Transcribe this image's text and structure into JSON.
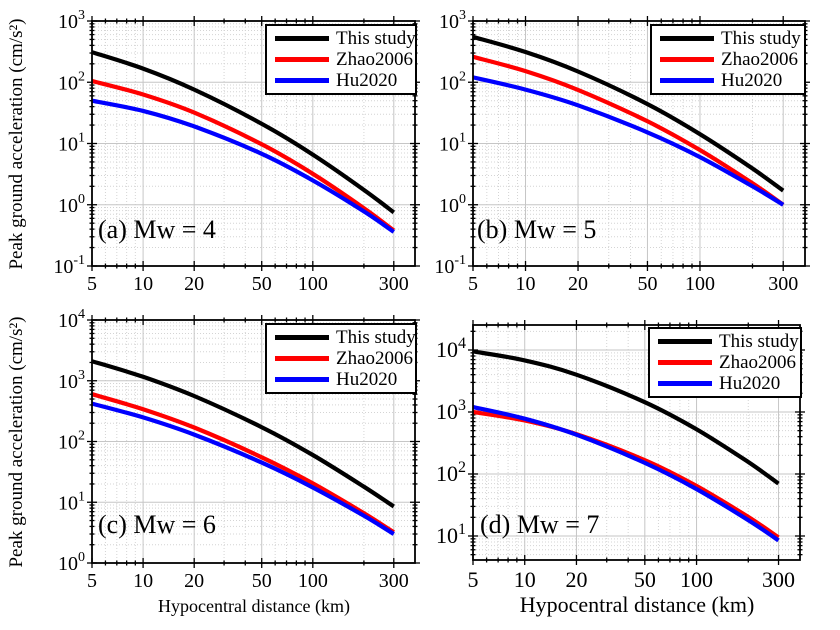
{
  "figure": {
    "ylabel": "Peak ground acceleration (cm/s²)",
    "xlabel": "Hypocentral distance (km)",
    "background": "#ffffff",
    "axis_color": "#000000",
    "grid_major_color": "#c6c6c6",
    "grid_minor_color": "#d4d4d4"
  },
  "chart_data": [
    {
      "id": "a",
      "type": "line",
      "label": "(a) Mw = 4",
      "xlabel": "Hypocentral distance (km)",
      "ylabel": "Peak ground acceleration (cm/s²)",
      "xlim": [
        5,
        400
      ],
      "ylim": [
        0.1,
        1000
      ],
      "xticks": [
        5,
        10,
        20,
        50,
        100,
        300
      ],
      "ytick_exponents": [
        -1,
        0,
        1,
        2,
        3
      ],
      "x": [
        5,
        10,
        20,
        50,
        100,
        200,
        300
      ],
      "series": [
        {
          "name": "This study",
          "color": "#000000",
          "values": [
            310,
            167,
            76,
            21,
            6.6,
            1.75,
            0.75
          ]
        },
        {
          "name": "Zhao2006",
          "color": "#ff0000",
          "values": [
            105,
            63,
            32,
            9.7,
            3.2,
            0.88,
            0.38
          ]
        },
        {
          "name": "Hu2020",
          "color": "#0000ff",
          "values": [
            50,
            34,
            19,
            6.8,
            2.5,
            0.78,
            0.36
          ]
        }
      ]
    },
    {
      "id": "b",
      "type": "line",
      "label": "(b) Mw = 5",
      "xlabel": "Hypocentral distance (km)",
      "ylabel": "Peak ground acceleration (cm/s²)",
      "xlim": [
        5,
        400
      ],
      "ylim": [
        0.1,
        1000
      ],
      "xticks": [
        5,
        10,
        20,
        50,
        100,
        300
      ],
      "ytick_exponents": [
        -1,
        0,
        1,
        2,
        3
      ],
      "x": [
        5,
        10,
        20,
        50,
        100,
        200,
        300
      ],
      "series": [
        {
          "name": "This study",
          "color": "#000000",
          "values": [
            550,
            312,
            150,
            44,
            14.2,
            3.9,
            1.7
          ]
        },
        {
          "name": "Zhao2006",
          "color": "#ff0000",
          "values": [
            260,
            152,
            75,
            23,
            7.8,
            2.24,
            1.0
          ]
        },
        {
          "name": "Hu2020",
          "color": "#0000ff",
          "values": [
            120,
            76,
            42,
            15.2,
            6.0,
            2.0,
            1.0
          ]
        }
      ]
    },
    {
      "id": "c",
      "type": "line",
      "label": "(c) Mw = 6",
      "xlabel": "Hypocentral distance (km)",
      "ylabel": "Peak ground acceleration (cm/s²)",
      "xlim": [
        5,
        400
      ],
      "ylim": [
        1,
        10000
      ],
      "xticks": [
        5,
        10,
        20,
        50,
        100,
        300
      ],
      "ytick_exponents": [
        0,
        1,
        2,
        3,
        4
      ],
      "x": [
        5,
        10,
        20,
        50,
        100,
        200,
        300
      ],
      "series": [
        {
          "name": "This study",
          "color": "#000000",
          "values": [
            2100,
            1160,
            560,
            172,
            60,
            18,
            8.5
          ]
        },
        {
          "name": "Zhao2006",
          "color": "#ff0000",
          "values": [
            600,
            340,
            170,
            55,
            20.4,
            6.6,
            3.2
          ]
        },
        {
          "name": "Hu2020",
          "color": "#0000ff",
          "values": [
            420,
            249,
            130,
            45,
            17.5,
            6.0,
            3.0
          ]
        }
      ]
    },
    {
      "id": "d",
      "type": "line",
      "label": "(d) Mw = 7",
      "xlabel": "Hypocentral distance (km)",
      "ylabel": "Peak ground acceleration (cm/s²)",
      "xlim": [
        5,
        400
      ],
      "ylim": [
        4.1,
        25300
      ],
      "xticks": [
        5,
        10,
        20,
        50,
        100,
        300
      ],
      "ytick_exponents": [
        1,
        2,
        3,
        4
      ],
      "x": [
        5,
        10,
        20,
        50,
        100,
        200,
        300
      ],
      "series": [
        {
          "name": "This study",
          "color": "#000000",
          "values": [
            9500,
            6800,
            4000,
            1440,
            525,
            156,
            70
          ]
        },
        {
          "name": "Zhao2006",
          "color": "#ff0000",
          "values": [
            1000,
            730,
            440,
            167,
            64,
            20.3,
            9.5
          ]
        },
        {
          "name": "Hu2020",
          "color": "#0000ff",
          "values": [
            1200,
            780,
            430,
            151,
            57,
            18,
            8.5
          ]
        }
      ]
    }
  ]
}
